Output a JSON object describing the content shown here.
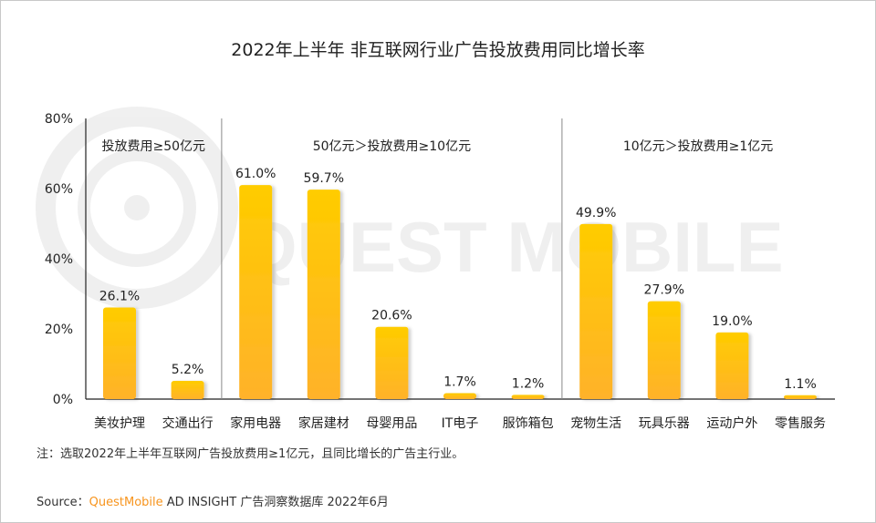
{
  "chart_data": {
    "type": "bar",
    "title": "2022年上半年 非互联网行业广告投放费用同比增长率",
    "categories": [
      "美妆护理",
      "交通出行",
      "家用电器",
      "家居建材",
      "母婴用品",
      "IT电子",
      "服饰箱包",
      "宠物生活",
      "玩具乐器",
      "运动户外",
      "零售服务"
    ],
    "values": [
      26.1,
      5.2,
      61.0,
      59.7,
      20.6,
      1.7,
      1.2,
      49.9,
      27.9,
      19.0,
      1.1
    ],
    "data_labels": [
      "26.1%",
      "5.2%",
      "61.0%",
      "59.7%",
      "20.6%",
      "1.7%",
      "1.2%",
      "49.9%",
      "27.9%",
      "19.0%",
      "1.1%"
    ],
    "ylim": [
      0,
      80
    ],
    "yticks": [
      "0%",
      "20%",
      "40%",
      "60%",
      "80%"
    ],
    "groups": [
      {
        "label": "投放费用≥50亿元",
        "size": 2
      },
      {
        "label": "50亿元＞投放费用≥10亿元",
        "size": 5
      },
      {
        "label": "10亿元＞投放费用≥1亿元",
        "size": 4
      }
    ],
    "grid": false,
    "bar_color_top": "#FFCC00",
    "bar_color_bottom": "#FFB22A"
  },
  "note": "注：选取2022年上半年互联网广告投放费用≥1亿元，且同比增长的广告主行业。",
  "source": {
    "prefix": "Source：",
    "brand": "QuestMobile",
    "rest": " AD INSIGHT 广告洞察数据库 2022年6月"
  },
  "watermark": "QUEST MOBILE"
}
